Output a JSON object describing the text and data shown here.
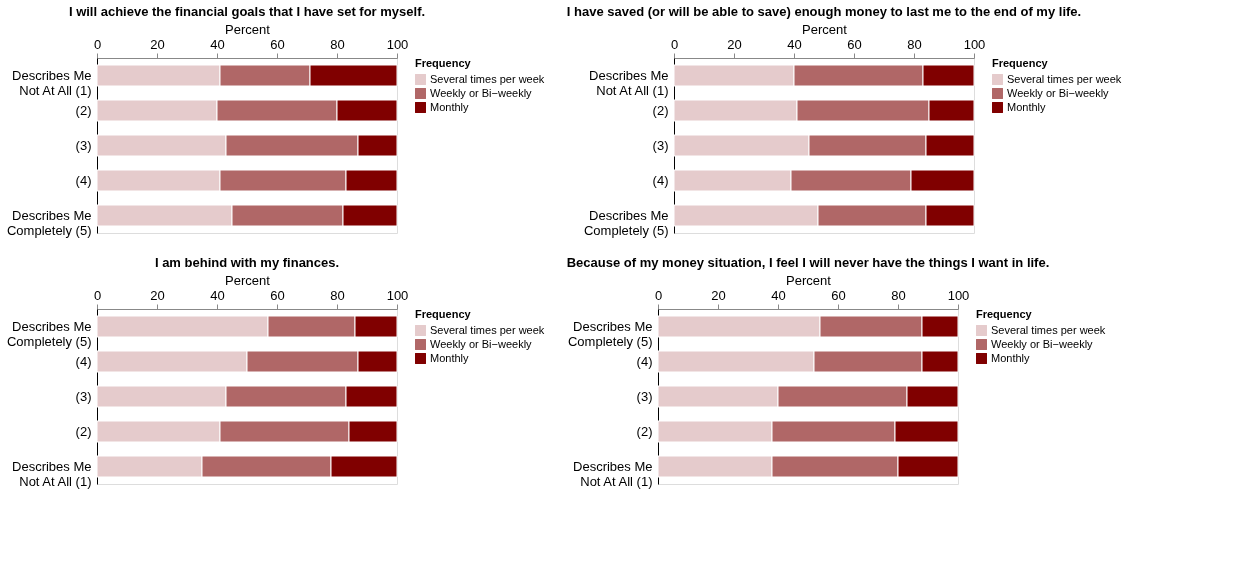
{
  "chart_data": [
    {
      "type": "bar",
      "orientation": "horizontal",
      "stacked": true,
      "title": "I will achieve the financial goals that I have set for myself.",
      "xlabel": "Percent",
      "legend_title": "Frequency",
      "legend": "right",
      "grid": false,
      "xlim": [
        0,
        100
      ],
      "xticks": [
        0,
        20,
        40,
        60,
        80,
        100
      ],
      "categories": [
        "Describes Me\nNot At All (1)",
        "(2)",
        "(3)",
        "(4)",
        "Describes Me\nCompletely (5)"
      ],
      "series": [
        {
          "name": "Several times per week",
          "color": "#e5cbcc",
          "values": [
            41,
            40,
            43,
            41,
            45
          ]
        },
        {
          "name": "Weekly or Bi−weekly",
          "color": "#b06767",
          "values": [
            30,
            40,
            44,
            42,
            37
          ]
        },
        {
          "name": "Monthly",
          "color": "#800000",
          "values": [
            29,
            20,
            13,
            17,
            18
          ]
        }
      ]
    },
    {
      "type": "bar",
      "orientation": "horizontal",
      "stacked": true,
      "title": "I have saved (or will be able to save) enough money to last me to the end of my life.",
      "xlabel": "Percent",
      "legend_title": "Frequency",
      "legend": "right",
      "grid": false,
      "xlim": [
        0,
        100
      ],
      "xticks": [
        0,
        20,
        40,
        60,
        80,
        100
      ],
      "categories": [
        "Describes Me\nNot At All (1)",
        "(2)",
        "(3)",
        "(4)",
        "Describes Me\nCompletely (5)"
      ],
      "series": [
        {
          "name": "Several times per week",
          "color": "#e5cbcc",
          "values": [
            40,
            41,
            45,
            39,
            48
          ]
        },
        {
          "name": "Weekly or Bi−weekly",
          "color": "#b06767",
          "values": [
            43,
            44,
            39,
            40,
            36
          ]
        },
        {
          "name": "Monthly",
          "color": "#800000",
          "values": [
            17,
            15,
            16,
            21,
            16
          ]
        }
      ]
    },
    {
      "type": "bar",
      "orientation": "horizontal",
      "stacked": true,
      "title": "I am behind with my finances.",
      "xlabel": "Percent",
      "legend_title": "Frequency",
      "legend": "right",
      "grid": false,
      "xlim": [
        0,
        100
      ],
      "xticks": [
        0,
        20,
        40,
        60,
        80,
        100
      ],
      "categories": [
        "Describes Me\nCompletely (5)",
        "(4)",
        "(3)",
        "(2)",
        "Describes Me\nNot At All (1)"
      ],
      "series": [
        {
          "name": "Several times per week",
          "color": "#e5cbcc",
          "values": [
            57,
            50,
            43,
            41,
            35
          ]
        },
        {
          "name": "Weekly or Bi−weekly",
          "color": "#b06767",
          "values": [
            29,
            37,
            40,
            43,
            43
          ]
        },
        {
          "name": "Monthly",
          "color": "#800000",
          "values": [
            14,
            13,
            17,
            16,
            22
          ]
        }
      ]
    },
    {
      "type": "bar",
      "orientation": "horizontal",
      "stacked": true,
      "title": "Because of my money situation, I feel I will never have the things I want in life.",
      "xlabel": "Percent",
      "legend_title": "Frequency",
      "legend": "right",
      "grid": false,
      "xlim": [
        0,
        100
      ],
      "xticks": [
        0,
        20,
        40,
        60,
        80,
        100
      ],
      "categories": [
        "Describes Me\nCompletely (5)",
        "(4)",
        "(3)",
        "(2)",
        "Describes Me\nNot At All (1)"
      ],
      "series": [
        {
          "name": "Several times per week",
          "color": "#e5cbcc",
          "values": [
            54,
            52,
            40,
            38,
            38
          ]
        },
        {
          "name": "Weekly or Bi−weekly",
          "color": "#b06767",
          "values": [
            34,
            36,
            43,
            41,
            42
          ]
        },
        {
          "name": "Monthly",
          "color": "#800000",
          "values": [
            12,
            12,
            17,
            21,
            20
          ]
        }
      ]
    }
  ]
}
